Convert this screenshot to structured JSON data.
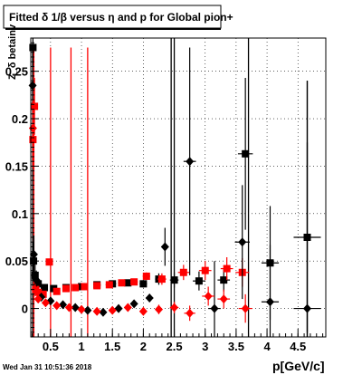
{
  "chart_data": {
    "type": "scatter",
    "title": "Fitted δ 1/β versus η and p for Global pion+",
    "xlabel": "p[GeV/c]",
    "ylabel": "Z_δ betainv",
    "footer": "Wed Jan 31 10:51:36 2018",
    "xlim": [
      0.18,
      4.95
    ],
    "ylim": [
      -0.03,
      0.285
    ],
    "xticks": [
      0.5,
      1,
      1.5,
      2,
      2.5,
      3,
      3.5,
      4,
      4.5
    ],
    "xtick_labels": [
      "0.5",
      "1",
      "1.5",
      "2",
      "2.5",
      "3",
      "3.5",
      "4",
      "4.5"
    ],
    "yticks": [
      0,
      0.05,
      0.1,
      0.15,
      0.2,
      0.25
    ],
    "ytick_labels": [
      "0",
      "0.05",
      "0.1",
      "0.15",
      "0.2",
      "0.25"
    ],
    "grid": true,
    "colors": {
      "black": "#000000",
      "red": "#ff0000"
    },
    "series": [
      {
        "marker": "square",
        "color": "#000000",
        "points": [
          {
            "x": 0.215,
            "y": 0.275,
            "xerr": 0.01,
            "yerr": 0.02
          },
          {
            "x": 0.225,
            "y": 0.05,
            "xerr": 0.01,
            "yerr": 0.02
          },
          {
            "x": 0.25,
            "y": 0.035,
            "xerr": 0.01,
            "yerr": 0.02
          },
          {
            "x": 0.3,
            "y": 0.026,
            "xerr": 0.02,
            "yerr": 0.004
          },
          {
            "x": 0.4,
            "y": 0.022,
            "xerr": 0.03,
            "yerr": 0.002
          },
          {
            "x": 0.55,
            "y": 0.021,
            "xerr": 0.03,
            "yerr": 0.002
          },
          {
            "x": 0.75,
            "y": 0.022,
            "xerr": 0.05,
            "yerr": 0.002
          },
          {
            "x": 1.0,
            "y": 0.023,
            "xerr": 0.05,
            "yerr": 0.002
          },
          {
            "x": 1.25,
            "y": 0.025,
            "xerr": 0.06,
            "yerr": 0.002
          },
          {
            "x": 1.5,
            "y": 0.026,
            "xerr": 0.06,
            "yerr": 0.002
          },
          {
            "x": 1.75,
            "y": 0.027,
            "xerr": 0.06,
            "yerr": 0.003
          },
          {
            "x": 2.0,
            "y": 0.026,
            "xerr": 0.06,
            "yerr": 0.004
          },
          {
            "x": 2.25,
            "y": 0.031,
            "xerr": 0.06,
            "yerr": 0.006
          },
          {
            "x": 2.5,
            "y": 0.03,
            "xerr": 0.07,
            "yerr": 0.008
          },
          {
            "x": 2.9,
            "y": 0.029,
            "xerr": 0.1,
            "yerr": 0.01
          },
          {
            "x": 3.3,
            "y": 0.03,
            "xerr": 0.1,
            "yerr": 0.012
          },
          {
            "x": 3.65,
            "y": 0.163,
            "xerr": 0.12,
            "yerr": 0.08
          },
          {
            "x": 4.05,
            "y": 0.048,
            "xerr": 0.14,
            "yerr": 0.06
          },
          {
            "x": 4.65,
            "y": 0.075,
            "xerr": 0.22,
            "yerr": 0.1
          }
        ]
      },
      {
        "marker": "square",
        "color": "#ff0000",
        "points": [
          {
            "x": 0.215,
            "y": 0.178,
            "xerr": 0.01,
            "yerr": 0.03
          },
          {
            "x": 0.24,
            "y": 0.213,
            "xerr": 0.01,
            "yerr": 0.03
          },
          {
            "x": 0.26,
            "y": 0.02,
            "xerr": 0.01,
            "yerr": 0.006
          },
          {
            "x": 0.3,
            "y": 0.017,
            "xerr": 0.02,
            "yerr": 0.003
          },
          {
            "x": 0.38,
            "y": 0.015,
            "xerr": 0.02,
            "yerr": 0.002
          },
          {
            "x": 0.48,
            "y": 0.049,
            "xerr": 0.03,
            "yerr": 0.002
          },
          {
            "x": 0.6,
            "y": 0.018,
            "xerr": 0.04,
            "yerr": 0.002
          },
          {
            "x": 0.75,
            "y": 0.021,
            "xerr": 0.05,
            "yerr": 0.002
          },
          {
            "x": 0.9,
            "y": 0.022,
            "xerr": 0.05,
            "yerr": 0.002
          },
          {
            "x": 1.05,
            "y": 0.023,
            "xerr": 0.05,
            "yerr": 0.002
          },
          {
            "x": 1.25,
            "y": 0.024,
            "xerr": 0.06,
            "yerr": 0.002
          },
          {
            "x": 1.45,
            "y": 0.025,
            "xerr": 0.06,
            "yerr": 0.002
          },
          {
            "x": 1.65,
            "y": 0.027,
            "xerr": 0.06,
            "yerr": 0.002
          },
          {
            "x": 1.85,
            "y": 0.028,
            "xerr": 0.06,
            "yerr": 0.003
          },
          {
            "x": 2.05,
            "y": 0.034,
            "xerr": 0.06,
            "yerr": 0.004
          },
          {
            "x": 2.3,
            "y": 0.031,
            "xerr": 0.07,
            "yerr": 0.006
          },
          {
            "x": 2.65,
            "y": 0.038,
            "xerr": 0.09,
            "yerr": 0.008
          },
          {
            "x": 3.0,
            "y": 0.04,
            "xerr": 0.1,
            "yerr": 0.01
          },
          {
            "x": 3.35,
            "y": 0.042,
            "xerr": 0.1,
            "yerr": 0.012
          },
          {
            "x": 3.6,
            "y": 0.038,
            "xerr": 0.11,
            "yerr": 0.015
          }
        ]
      },
      {
        "marker": "diamond",
        "color": "#000000",
        "points": [
          {
            "x": 0.21,
            "y": 0.235,
            "xerr": 0.01,
            "yerr": 0.02
          },
          {
            "x": 0.23,
            "y": 0.057,
            "xerr": 0.01,
            "yerr": 0.02
          },
          {
            "x": 0.27,
            "y": 0.03,
            "xerr": 0.01,
            "yerr": 0.01
          },
          {
            "x": 0.35,
            "y": 0.012,
            "xerr": 0.02,
            "yerr": 0.002
          },
          {
            "x": 0.5,
            "y": 0.008,
            "xerr": 0.03,
            "yerr": 0.002
          },
          {
            "x": 0.7,
            "y": 0.004,
            "xerr": 0.04,
            "yerr": 0.002
          },
          {
            "x": 0.9,
            "y": 0.001,
            "xerr": 0.05,
            "yerr": 0.002
          },
          {
            "x": 1.1,
            "y": -0.002,
            "xerr": 0.05,
            "yerr": 0.002
          },
          {
            "x": 1.35,
            "y": -0.004,
            "xerr": 0.06,
            "yerr": 0.002
          },
          {
            "x": 1.6,
            "y": 0.0,
            "xerr": 0.06,
            "yerr": 0.002
          },
          {
            "x": 1.85,
            "y": 0.005,
            "xerr": 0.06,
            "yerr": 0.003
          },
          {
            "x": 2.1,
            "y": 0.011,
            "xerr": 0.06,
            "yerr": 0.004
          },
          {
            "x": 2.35,
            "y": 0.065,
            "xerr": 0.06,
            "yerr": 0.02
          },
          {
            "x": 2.75,
            "y": 0.155,
            "xerr": 0.1,
            "yerr": 0.12
          },
          {
            "x": 3.15,
            "y": 0.0,
            "xerr": 0.1,
            "yerr": 0.05
          },
          {
            "x": 3.6,
            "y": 0.07,
            "xerr": 0.12,
            "yerr": 0.06
          },
          {
            "x": 4.05,
            "y": 0.007,
            "xerr": 0.14,
            "yerr": 0.06
          },
          {
            "x": 4.65,
            "y": 0.0,
            "xerr": 0.22,
            "yerr": 0.24
          }
        ]
      },
      {
        "marker": "diamond",
        "color": "#ff0000",
        "points": [
          {
            "x": 0.215,
            "y": 0.19,
            "xerr": 0.01,
            "yerr": 0.03
          },
          {
            "x": 0.25,
            "y": 0.02,
            "xerr": 0.01,
            "yerr": 0.005
          },
          {
            "x": 0.3,
            "y": 0.01,
            "xerr": 0.02,
            "yerr": 0.002
          },
          {
            "x": 0.42,
            "y": 0.006,
            "xerr": 0.02,
            "yerr": 0.002
          },
          {
            "x": 0.6,
            "y": 0.003,
            "xerr": 0.03,
            "yerr": 0.002
          },
          {
            "x": 0.8,
            "y": 0.001,
            "xerr": 0.04,
            "yerr": 0.002
          },
          {
            "x": 1.0,
            "y": -0.001,
            "xerr": 0.05,
            "yerr": 0.002
          },
          {
            "x": 1.25,
            "y": -0.003,
            "xerr": 0.05,
            "yerr": 0.002
          },
          {
            "x": 1.5,
            "y": -0.002,
            "xerr": 0.06,
            "yerr": 0.002
          },
          {
            "x": 1.75,
            "y": 0.001,
            "xerr": 0.06,
            "yerr": 0.003
          },
          {
            "x": 2.0,
            "y": -0.003,
            "xerr": 0.06,
            "yerr": 0.004
          },
          {
            "x": 2.25,
            "y": -0.001,
            "xerr": 0.06,
            "yerr": 0.005
          },
          {
            "x": 2.5,
            "y": 0.001,
            "xerr": 0.07,
            "yerr": 0.006
          },
          {
            "x": 2.75,
            "y": -0.005,
            "xerr": 0.09,
            "yerr": 0.008
          },
          {
            "x": 3.05,
            "y": 0.013,
            "xerr": 0.1,
            "yerr": 0.01
          },
          {
            "x": 3.3,
            "y": 0.01,
            "xerr": 0.1,
            "yerr": 0.01
          },
          {
            "x": 3.65,
            "y": 0.0,
            "xerr": 0.11,
            "yerr": 0.015
          }
        ]
      }
    ],
    "vertical_lines": [
      {
        "x": 0.21,
        "color": "#000000",
        "y1": 0.275,
        "y2": -0.03
      },
      {
        "x": 0.23,
        "color": "#ff0000",
        "y1": 0.275,
        "y2": -0.03
      },
      {
        "x": 0.5,
        "color": "#ff0000",
        "y1": 0.275,
        "y2": -0.03
      },
      {
        "x": 0.83,
        "color": "#ff0000",
        "y1": 0.275,
        "y2": -0.03
      },
      {
        "x": 1.1,
        "color": "#ff0000",
        "y1": 0.275,
        "y2": -0.03
      },
      {
        "x": 2.45,
        "color": "#000000",
        "y1": 0.285,
        "y2": -0.03
      },
      {
        "x": 2.5,
        "color": "#000000",
        "y1": 0.285,
        "y2": -0.03
      },
      {
        "x": 3.7,
        "color": "#000000",
        "y1": 0.285,
        "y2": -0.03
      },
      {
        "x": 4.65,
        "color": "#000000",
        "y1": 0.24,
        "y2": -0.03
      }
    ]
  }
}
